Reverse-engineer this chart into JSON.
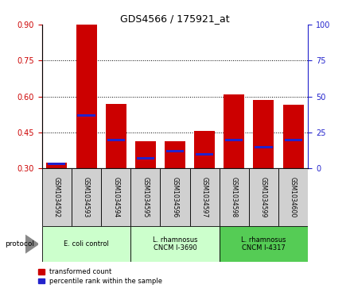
{
  "title": "GDS4566 / 175921_at",
  "samples": [
    "GSM1034592",
    "GSM1034593",
    "GSM1034594",
    "GSM1034595",
    "GSM1034596",
    "GSM1034597",
    "GSM1034598",
    "GSM1034599",
    "GSM1034600"
  ],
  "transformed_count": [
    0.325,
    0.9,
    0.57,
    0.415,
    0.415,
    0.455,
    0.61,
    0.585,
    0.565
  ],
  "percentile_rank": [
    3,
    37,
    20,
    7,
    12,
    10,
    20,
    15,
    20
  ],
  "ylim_left": [
    0.3,
    0.9
  ],
  "ylim_right": [
    0,
    100
  ],
  "yticks_left": [
    0.3,
    0.45,
    0.6,
    0.75,
    0.9
  ],
  "yticks_right": [
    0,
    25,
    50,
    75,
    100
  ],
  "bar_color_red": "#cc0000",
  "bar_color_blue": "#2222cc",
  "bar_width": 0.7,
  "group_ranges": [
    {
      "start": 0,
      "end": 2,
      "label": "E. coli control",
      "color": "#ccffcc"
    },
    {
      "start": 3,
      "end": 5,
      "label": "L. rhamnosus\nCNCM I-3690",
      "color": "#ccffcc"
    },
    {
      "start": 6,
      "end": 8,
      "label": "L. rhamnosus\nCNCM I-4317",
      "color": "#55cc55"
    }
  ],
  "legend_red": "transformed count",
  "legend_blue": "percentile rank within the sample",
  "protocol_label": "protocol",
  "background_color": "#ffffff",
  "tick_color_left": "#cc0000",
  "tick_color_right": "#2222cc",
  "plot_bg": "#ffffff"
}
